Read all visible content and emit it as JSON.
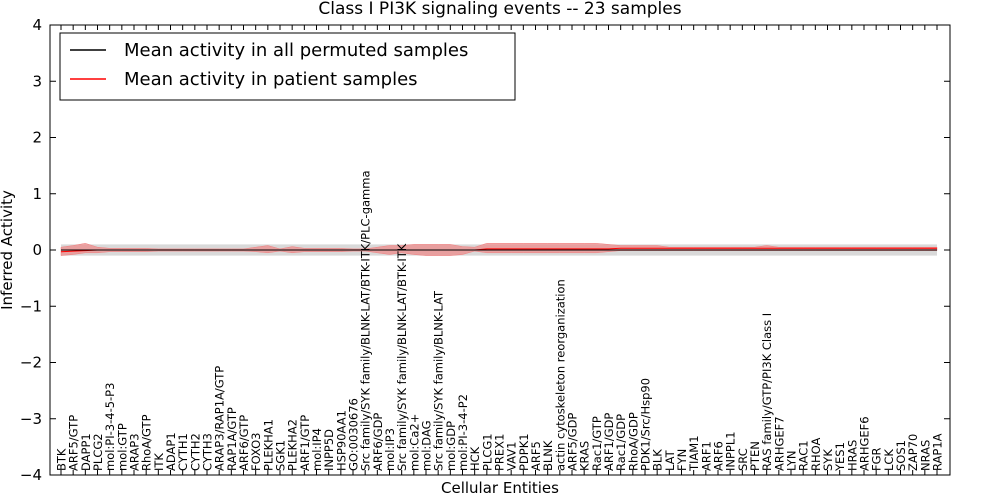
{
  "chart_data": {
    "type": "line",
    "title": "Class I PI3K signaling events -- 23 samples",
    "xlabel": "Cellular Entities",
    "ylabel": "Inferred Activity",
    "ylim": [
      -4,
      4
    ],
    "yticks": [
      -4,
      -3,
      -2,
      -1,
      0,
      1,
      2,
      3,
      4
    ],
    "ytick_labels": [
      "−4",
      "−3",
      "−2",
      "−1",
      "0",
      "1",
      "2",
      "3",
      "4"
    ],
    "grid": false,
    "legend_position": "top-left",
    "colors": {
      "permuted": "#000000",
      "patient": "#ff0000",
      "patient_band": "#f08080",
      "permuted_band": "#bfbfbf"
    },
    "categories": [
      "BTK",
      "ARF5/GTP",
      "DAPP1",
      "PLCG2",
      "mol:PI-3-4-5-P3",
      "mol:GTP",
      "ARAP3",
      "RhoA/GTP",
      "ITK",
      "ADAP1",
      "CYTH1",
      "CYTH2",
      "CYTH3",
      "ARAP3/RAP1A/GTP",
      "RAP1A/GTP",
      "ARF6/GTP",
      "FOXO3",
      "PLEKHA1",
      "SGK1",
      "PLEKHA2",
      "ARF1/GTP",
      "mol:IP4",
      "INPP5D",
      "HSP90AA1",
      "GO:0030676",
      "Src family/SYK family/BLNK-LAT/BTK-ITK/PLC-gamma",
      "ARF6/GDP",
      "mol:IP3",
      "Src family/SYK family/BLNK-LAT/BTK-ITK",
      "mol:Ca2+",
      "mol:DAG",
      "Src family/SYK family/BLNK-LAT",
      "mol:GDP",
      "mol:PI-3-4-P2",
      "HCK",
      "PLCG1",
      "PREX1",
      "VAV1",
      "PDPK1",
      "ARF5",
      "BLNK",
      "actin cytoskeleton reorganization",
      "ARF5/GDP",
      "KRAS",
      "Rac1/GTP",
      "ARF1/GDP",
      "Rac1/GDP",
      "RhoA/GDP",
      "PDK1/Src/Hsp90",
      "BLK",
      "LAT",
      "FYN",
      "TIAM1",
      "ARF1",
      "ARF6",
      "INPPL1",
      "SRC",
      "PTEN",
      "RAS family/GTP/PI3K Class I",
      "ARHGEF7",
      "LYN",
      "RAC1",
      "RHOA",
      "SYK",
      "YES1",
      "HRAS",
      "ARHGEF6",
      "FGR",
      "LCK",
      "SOS1",
      "ZAP70",
      "NRAS",
      "RAP1A"
    ],
    "series": [
      {
        "name": "Mean activity in all permuted samples",
        "values": [
          0,
          0,
          0,
          0,
          0,
          0,
          0,
          0,
          0,
          0,
          0,
          0,
          0,
          0,
          0,
          0,
          0,
          0,
          0,
          0,
          0,
          0,
          0,
          0,
          0,
          0,
          0,
          0,
          0,
          0,
          0,
          0,
          0,
          0,
          0,
          0,
          0,
          0,
          0,
          0,
          0,
          0,
          0,
          0,
          0,
          0,
          0,
          0,
          0,
          0,
          0,
          0,
          0,
          0,
          0,
          0,
          0,
          0,
          0,
          0,
          0,
          0,
          0,
          0,
          0,
          0,
          0,
          0,
          0,
          0,
          0,
          0,
          0
        ],
        "lower": [
          -0.1,
          -0.1,
          -0.1,
          -0.1,
          -0.1,
          -0.1,
          -0.1,
          -0.1,
          -0.1,
          -0.1,
          -0.1,
          -0.1,
          -0.1,
          -0.1,
          -0.1,
          -0.1,
          -0.1,
          -0.1,
          -0.1,
          -0.1,
          -0.1,
          -0.1,
          -0.1,
          -0.1,
          -0.1,
          -0.1,
          -0.1,
          -0.1,
          -0.1,
          -0.1,
          -0.1,
          -0.1,
          -0.1,
          -0.1,
          -0.1,
          -0.1,
          -0.1,
          -0.1,
          -0.1,
          -0.1,
          -0.1,
          -0.1,
          -0.1,
          -0.1,
          -0.1,
          -0.1,
          -0.1,
          -0.1,
          -0.1,
          -0.1,
          -0.1,
          -0.1,
          -0.1,
          -0.1,
          -0.1,
          -0.1,
          -0.1,
          -0.1,
          -0.1,
          -0.1,
          -0.1,
          -0.1,
          -0.1,
          -0.1,
          -0.1,
          -0.1,
          -0.1,
          -0.1,
          -0.1,
          -0.1,
          -0.1,
          -0.1,
          -0.1
        ],
        "upper": [
          0.1,
          0.1,
          0.1,
          0.1,
          0.1,
          0.1,
          0.1,
          0.1,
          0.1,
          0.1,
          0.1,
          0.1,
          0.1,
          0.1,
          0.1,
          0.1,
          0.1,
          0.1,
          0.1,
          0.1,
          0.1,
          0.1,
          0.1,
          0.1,
          0.1,
          0.1,
          0.1,
          0.1,
          0.1,
          0.1,
          0.1,
          0.1,
          0.1,
          0.1,
          0.1,
          0.1,
          0.1,
          0.1,
          0.1,
          0.1,
          0.1,
          0.1,
          0.1,
          0.1,
          0.1,
          0.1,
          0.1,
          0.1,
          0.1,
          0.1,
          0.1,
          0.1,
          0.1,
          0.1,
          0.1,
          0.1,
          0.1,
          0.1,
          0.1,
          0.1,
          0.1,
          0.1,
          0.1,
          0.1,
          0.1,
          0.1,
          0.1,
          0.1,
          0.1,
          0.1,
          0.1,
          0.1,
          0.1
        ]
      },
      {
        "name": "Mean activity in patient samples",
        "values": [
          -0.03,
          -0.02,
          -0.01,
          0,
          0,
          0,
          0,
          0,
          0,
          0,
          0,
          0,
          0,
          0,
          0,
          0,
          0,
          0,
          0,
          0,
          0,
          0,
          0,
          0,
          0,
          0,
          0,
          0,
          0,
          0,
          0,
          0,
          0,
          0,
          0,
          0.02,
          0.02,
          0.02,
          0.02,
          0.02,
          0.02,
          0.02,
          0.02,
          0.02,
          0.02,
          0.02,
          0.03,
          0.03,
          0.03,
          0.03,
          0.03,
          0.03,
          0.03,
          0.03,
          0.03,
          0.03,
          0.03,
          0.03,
          0.03,
          0.03,
          0.03,
          0.03,
          0.03,
          0.03,
          0.03,
          0.03,
          0.03,
          0.03,
          0.03,
          0.03,
          0.03,
          0.03,
          0.03
        ],
        "lower": [
          -0.1,
          -0.08,
          -0.05,
          -0.05,
          -0.03,
          -0.03,
          -0.03,
          -0.03,
          -0.02,
          -0.02,
          -0.02,
          -0.02,
          -0.02,
          -0.02,
          -0.02,
          -0.02,
          -0.03,
          -0.05,
          -0.02,
          -0.05,
          -0.03,
          -0.03,
          -0.03,
          -0.03,
          -0.02,
          -0.02,
          -0.05,
          -0.08,
          -0.05,
          -0.08,
          -0.1,
          -0.1,
          -0.1,
          -0.08,
          -0.02,
          -0.05,
          -0.05,
          -0.05,
          -0.05,
          -0.05,
          -0.05,
          -0.05,
          -0.05,
          -0.05,
          -0.05,
          -0.03,
          -0.01,
          -0.01,
          -0.01,
          -0.01,
          -0.01,
          -0.01,
          -0.01,
          -0.01,
          -0.01,
          -0.01,
          -0.01,
          -0.01,
          -0.01,
          -0.01,
          -0.01,
          -0.01,
          -0.01,
          -0.01,
          -0.01,
          -0.01,
          -0.01,
          -0.01,
          -0.01,
          -0.01,
          -0.01,
          -0.01,
          -0.01
        ],
        "upper": [
          0.05,
          0.08,
          0.12,
          0.05,
          0.03,
          0.03,
          0.03,
          0.03,
          0.02,
          0.02,
          0.02,
          0.02,
          0.02,
          0.02,
          0.02,
          0.02,
          0.05,
          0.08,
          0.02,
          0.06,
          0.03,
          0.03,
          0.03,
          0.03,
          0.02,
          0.02,
          0.05,
          0.08,
          0.08,
          0.1,
          0.1,
          0.1,
          0.1,
          0.06,
          0.05,
          0.12,
          0.12,
          0.12,
          0.12,
          0.12,
          0.12,
          0.12,
          0.12,
          0.12,
          0.12,
          0.1,
          0.08,
          0.08,
          0.08,
          0.08,
          0.05,
          0.05,
          0.05,
          0.05,
          0.05,
          0.05,
          0.05,
          0.05,
          0.08,
          0.05,
          0.05,
          0.05,
          0.05,
          0.05,
          0.05,
          0.05,
          0.05,
          0.05,
          0.05,
          0.05,
          0.05,
          0.05,
          0.05
        ]
      }
    ]
  }
}
